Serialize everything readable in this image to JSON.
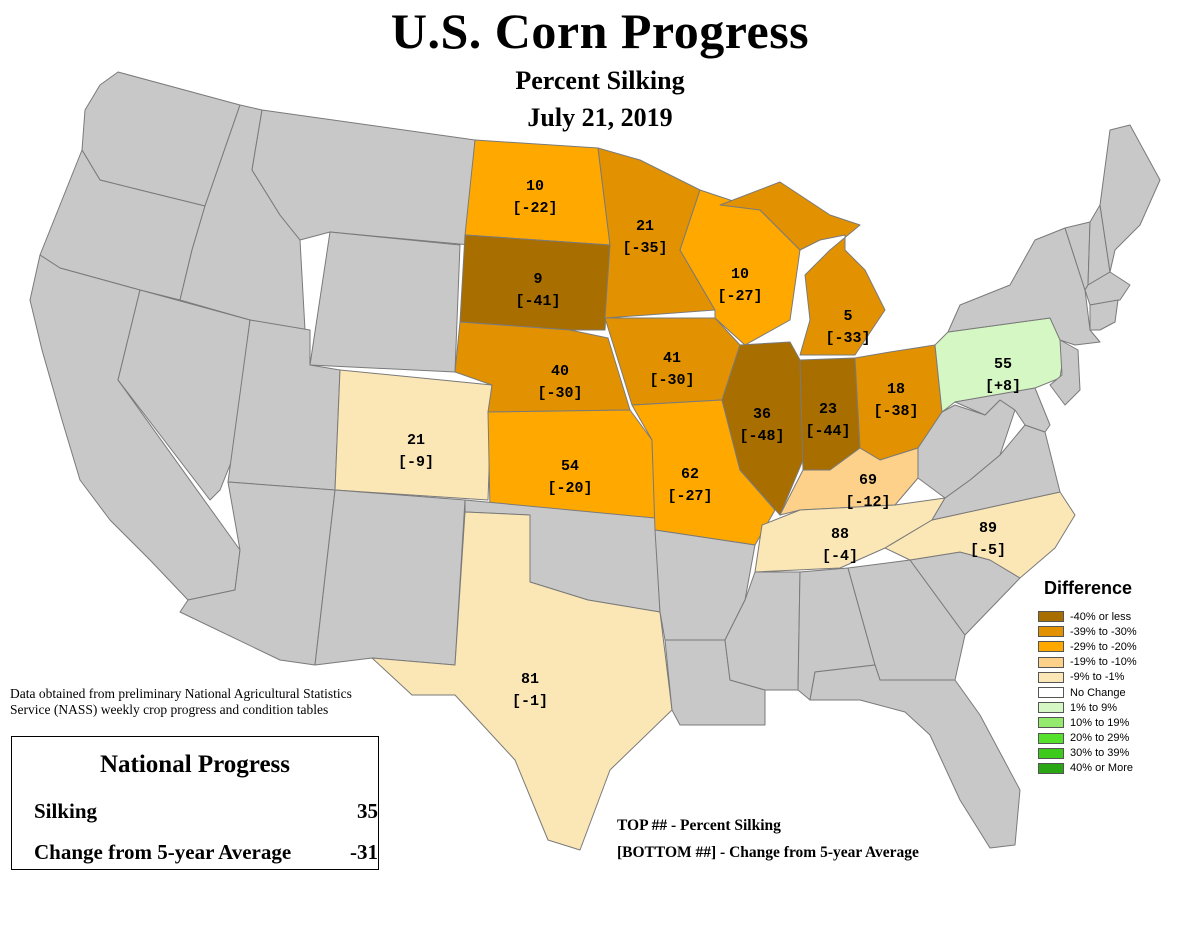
{
  "title": "U.S. Corn Progress",
  "subtitle": "Percent Silking",
  "date": "July 21, 2019",
  "colors": {
    "ocean": "#ffffff",
    "no_data": "#c8c8c8",
    "border": "#808080",
    "neg40_or_less": "#a86e00",
    "neg39_to_neg30": "#e29200",
    "neg29_to_neg20": "#ffa900",
    "neg19_to_neg10": "#fdd18a",
    "neg9_to_neg1": "#fbe7b5",
    "no_change": "#ffffff",
    "pos1_to_9": "#d4f7c4",
    "pos10_to_19": "#93ea6c",
    "pos20_to_29": "#55e02b",
    "pos30_to_39": "#3ccb1a",
    "pos40_or_more": "#2aa614"
  },
  "states": [
    {
      "code": "ND",
      "pct": "10",
      "diff": "[-22]",
      "category": "neg29_to_neg20"
    },
    {
      "code": "SD",
      "pct": "9",
      "diff": "[-41]",
      "category": "neg40_or_less"
    },
    {
      "code": "MN",
      "pct": "21",
      "diff": "[-35]",
      "category": "neg39_to_neg30"
    },
    {
      "code": "WI",
      "pct": "10",
      "diff": "[-27]",
      "category": "neg29_to_neg20"
    },
    {
      "code": "MI",
      "pct": "5",
      "diff": "[-33]",
      "category": "neg39_to_neg30"
    },
    {
      "code": "NE",
      "pct": "40",
      "diff": "[-30]",
      "category": "neg39_to_neg30"
    },
    {
      "code": "IA",
      "pct": "41",
      "diff": "[-30]",
      "category": "neg39_to_neg30"
    },
    {
      "code": "IL",
      "pct": "36",
      "diff": "[-48]",
      "category": "neg40_or_less"
    },
    {
      "code": "IN",
      "pct": "23",
      "diff": "[-44]",
      "category": "neg40_or_less"
    },
    {
      "code": "OH",
      "pct": "18",
      "diff": "[-38]",
      "category": "neg39_to_neg30"
    },
    {
      "code": "PA",
      "pct": "55",
      "diff": "[+8]",
      "category": "pos1_to_9"
    },
    {
      "code": "CO",
      "pct": "21",
      "diff": "[-9]",
      "category": "neg9_to_neg1"
    },
    {
      "code": "KS",
      "pct": "54",
      "diff": "[-20]",
      "category": "neg29_to_neg20"
    },
    {
      "code": "MO",
      "pct": "62",
      "diff": "[-27]",
      "category": "neg29_to_neg20"
    },
    {
      "code": "KY",
      "pct": "69",
      "diff": "[-12]",
      "category": "neg19_to_neg10"
    },
    {
      "code": "TN",
      "pct": "88",
      "diff": "[-4]",
      "category": "neg9_to_neg1"
    },
    {
      "code": "NC",
      "pct": "89",
      "diff": "[-5]",
      "category": "neg9_to_neg1"
    },
    {
      "code": "TX",
      "pct": "81",
      "diff": "[-1]",
      "category": "neg9_to_neg1"
    }
  ],
  "legend": {
    "title": "Difference",
    "items": [
      {
        "label": "-40% or less",
        "color": "#a86e00"
      },
      {
        "label": "-39% to -30%",
        "color": "#e29200"
      },
      {
        "label": "-29% to -20%",
        "color": "#ffa900"
      },
      {
        "label": "-19% to -10%",
        "color": "#fdd18a"
      },
      {
        "label": "-9% to -1%",
        "color": "#fbe7b5"
      },
      {
        "label": "No Change",
        "color": "#ffffff"
      },
      {
        "label": "1% to 9%",
        "color": "#d4f7c4"
      },
      {
        "label": "10% to 19%",
        "color": "#93ea6c"
      },
      {
        "label": "20% to 29%",
        "color": "#55e02b"
      },
      {
        "label": "30% to 39%",
        "color": "#3ccb1a"
      },
      {
        "label": "40% or More",
        "color": "#2aa614"
      }
    ]
  },
  "source_note": "Data obtained from preliminary National Agricultural Statistics Service (NASS) weekly crop progress and condition tables",
  "national": {
    "title": "National Progress",
    "silking_label": "Silking",
    "silking_value": "35",
    "change_label": "Change from 5-year Average",
    "change_value": "-31"
  },
  "key": {
    "top_line": "TOP ## - Percent Silking",
    "bottom_line": "[BOTTOM ##] - Change from 5-year Average"
  }
}
